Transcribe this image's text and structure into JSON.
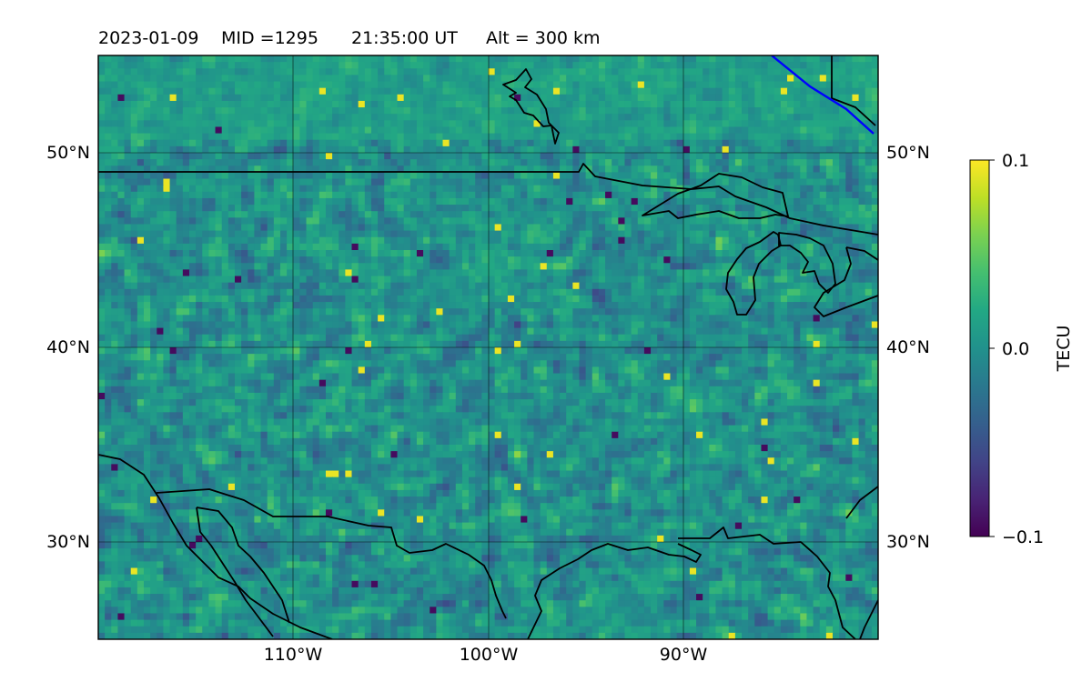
{
  "title": {
    "date": "2023-01-09",
    "mid": "MID =1295",
    "time": "21:35:00  UT",
    "altitude": "Alt = 300 km"
  },
  "map": {
    "lon_range": [
      -120,
      -80
    ],
    "lat_range": [
      25,
      55
    ],
    "lon_ticks": [
      {
        "value": -110,
        "label": "110°W"
      },
      {
        "value": -100,
        "label": "100°W"
      },
      {
        "value": -90,
        "label": "90°W"
      }
    ],
    "lat_ticks": [
      {
        "value": 50,
        "label": "50°N"
      },
      {
        "value": 40,
        "label": "40°N"
      },
      {
        "value": 30,
        "label": "30°N"
      }
    ],
    "colormap": "viridis",
    "grid": true
  },
  "colorbar": {
    "label": "TECU",
    "range": [
      -0.1,
      0.1
    ],
    "ticks": [
      {
        "value": 0.1,
        "label": "0.1"
      },
      {
        "value": 0.0,
        "label": "0.0"
      },
      {
        "value": -0.1,
        "label": "−0.1"
      }
    ]
  },
  "colors": {
    "coastline": "#000000",
    "highlight_line": "#0000ff",
    "grid": "#000000"
  }
}
